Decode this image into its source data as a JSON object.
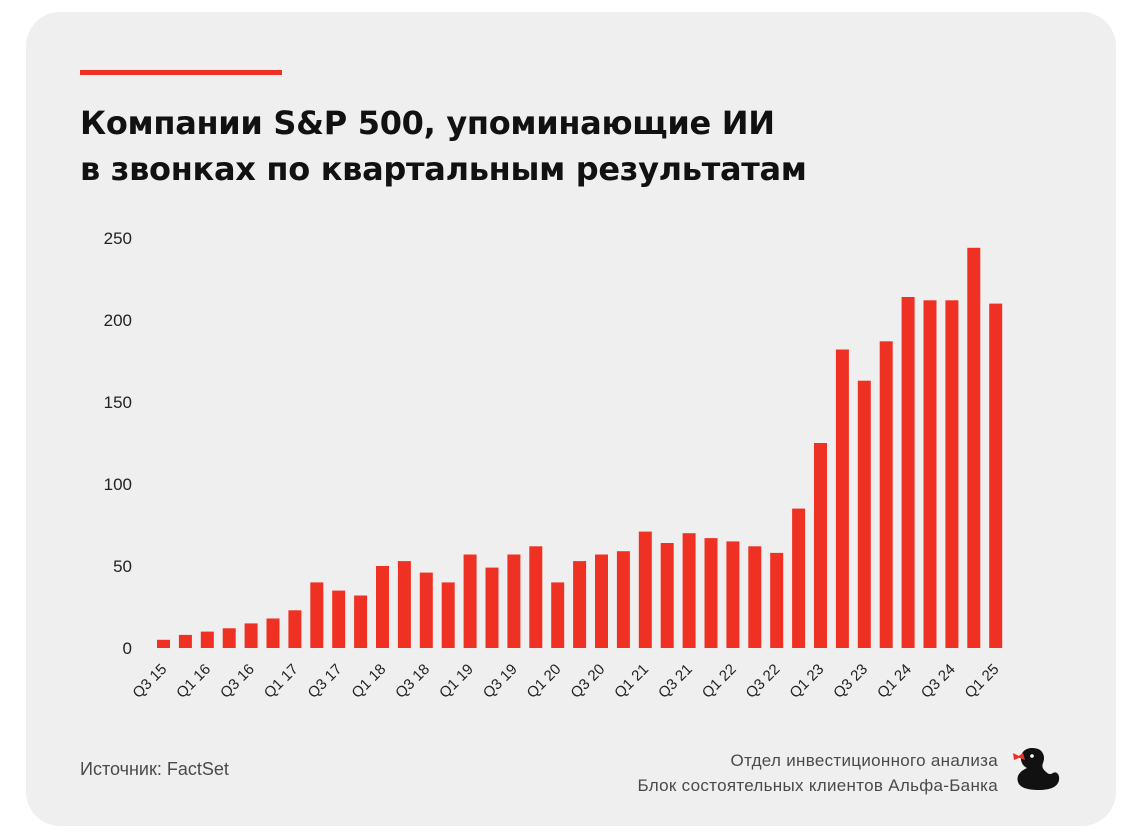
{
  "title": {
    "line1": "Компании S&P 500, упоминающие ИИ",
    "line2": "в звонках по квартальным результатам"
  },
  "footer": {
    "source": "Источник: FactSet",
    "dept_line1": "Отдел инвестиционного анализа",
    "dept_line2": "Блок состоятельных клиентов Альфа-Банка"
  },
  "logo": {
    "icon": "duck-logo-icon"
  },
  "colors": {
    "bar": "#ef3124",
    "background": "#efefef",
    "text": "#111111",
    "axis_text": "#222222"
  },
  "chart_data": {
    "type": "bar",
    "title": "Компании S&P 500, упоминающие ИИ в звонках по квартальным результатам",
    "xlabel": "",
    "ylabel": "",
    "ylim": [
      0,
      250
    ],
    "yticks": [
      0,
      50,
      100,
      150,
      200,
      250
    ],
    "grid": false,
    "legend": "none",
    "categories": [
      "Q3 15",
      "Q4 15",
      "Q1 16",
      "Q2 16",
      "Q3 16",
      "Q4 16",
      "Q1 17",
      "Q2 17",
      "Q3 17",
      "Q4 17",
      "Q1 18",
      "Q2 18",
      "Q3 18",
      "Q4 18",
      "Q1 19",
      "Q2 19",
      "Q3 19",
      "Q4 19",
      "Q1 20",
      "Q2 20",
      "Q3 20",
      "Q4 20",
      "Q1 21",
      "Q2 21",
      "Q3 21",
      "Q4 21",
      "Q1 22",
      "Q2 22",
      "Q3 22",
      "Q4 22",
      "Q1 23",
      "Q2 23",
      "Q3 23",
      "Q4 23",
      "Q1 24",
      "Q2 24",
      "Q3 24",
      "Q4 24",
      "Q1 25"
    ],
    "x_tick_labels": [
      "Q3 15",
      "Q1 16",
      "Q3 16",
      "Q1 17",
      "Q3 17",
      "Q1 18",
      "Q3 18",
      "Q1 19",
      "Q3 19",
      "Q1 20",
      "Q3 20",
      "Q1 21",
      "Q3 21",
      "Q1 22",
      "Q3 22",
      "Q1 23",
      "Q3 23",
      "Q1 24",
      "Q3 24",
      "Q1 25"
    ],
    "values": [
      5,
      8,
      10,
      12,
      15,
      18,
      23,
      40,
      35,
      32,
      50,
      53,
      46,
      40,
      57,
      49,
      57,
      62,
      40,
      53,
      57,
      59,
      71,
      64,
      70,
      67,
      65,
      62,
      58,
      85,
      125,
      182,
      163,
      187,
      214,
      212,
      212,
      244,
      210
    ]
  }
}
